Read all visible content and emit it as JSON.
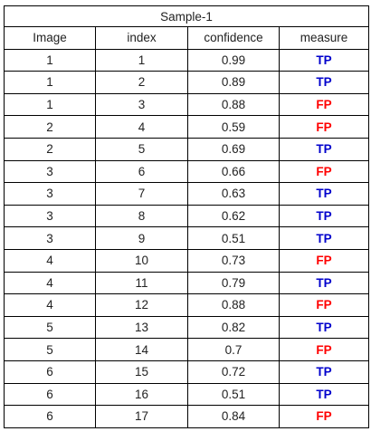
{
  "table": {
    "title": "Sample-1",
    "headers": {
      "image": "Image",
      "index": "index",
      "confidence": "confidence",
      "measure": "measure"
    },
    "colors": {
      "TP": "#0000cc",
      "FP": "#ff0000"
    },
    "rows": [
      {
        "image": "1",
        "index": "1",
        "confidence": "0.99",
        "measure": "TP"
      },
      {
        "image": "1",
        "index": "2",
        "confidence": "0.89",
        "measure": "TP"
      },
      {
        "image": "1",
        "index": "3",
        "confidence": "0.88",
        "measure": "FP"
      },
      {
        "image": "2",
        "index": "4",
        "confidence": "0.59",
        "measure": "FP"
      },
      {
        "image": "2",
        "index": "5",
        "confidence": "0.69",
        "measure": "TP"
      },
      {
        "image": "3",
        "index": "6",
        "confidence": "0.66",
        "measure": "FP"
      },
      {
        "image": "3",
        "index": "7",
        "confidence": "0.63",
        "measure": "TP"
      },
      {
        "image": "3",
        "index": "8",
        "confidence": "0.62",
        "measure": "TP"
      },
      {
        "image": "3",
        "index": "9",
        "confidence": "0.51",
        "measure": "TP"
      },
      {
        "image": "4",
        "index": "10",
        "confidence": "0.73",
        "measure": "FP"
      },
      {
        "image": "4",
        "index": "11",
        "confidence": "0.79",
        "measure": "TP"
      },
      {
        "image": "4",
        "index": "12",
        "confidence": "0.88",
        "measure": "FP"
      },
      {
        "image": "5",
        "index": "13",
        "confidence": "0.82",
        "measure": "TP"
      },
      {
        "image": "5",
        "index": "14",
        "confidence": "0.7",
        "measure": "FP"
      },
      {
        "image": "6",
        "index": "15",
        "confidence": "0.72",
        "measure": "TP"
      },
      {
        "image": "6",
        "index": "16",
        "confidence": "0.51",
        "measure": "TP"
      },
      {
        "image": "6",
        "index": "17",
        "confidence": "0.84",
        "measure": "FP"
      }
    ]
  }
}
